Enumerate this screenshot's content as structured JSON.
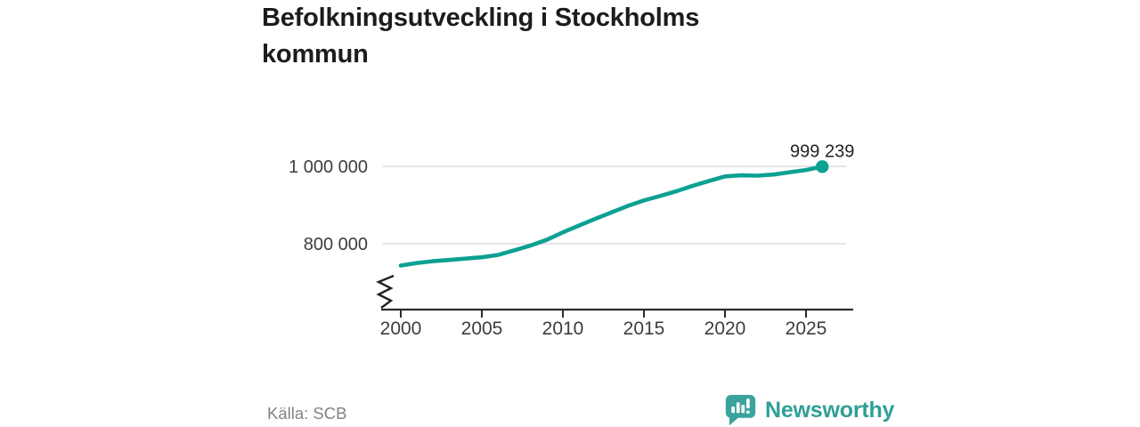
{
  "header": {
    "title": "Befolkningsutveckling i Stockholms kommun"
  },
  "chart_data": {
    "type": "line",
    "title": "Befolkningsutveckling i Stockholms kommun",
    "x": [
      2000,
      2001,
      2002,
      2003,
      2004,
      2005,
      2006,
      2007,
      2008,
      2009,
      2010,
      2011,
      2012,
      2013,
      2014,
      2015,
      2016,
      2017,
      2018,
      2019,
      2020,
      2021,
      2022,
      2023,
      2024,
      2025,
      2026
    ],
    "values": [
      743703,
      750348,
      754948,
      758148,
      761721,
      765044,
      771038,
      782885,
      795163,
      810120,
      829417,
      847073,
      864324,
      881235,
      897700,
      911989,
      923516,
      935619,
      949761,
      962154,
      974073,
      976700,
      975816,
      978927,
      984748,
      990500,
      999239
    ],
    "xticks": [
      2000,
      2005,
      2010,
      2015,
      2020,
      2025
    ],
    "yticks": [
      {
        "label": "1 000 000",
        "value": 1000000
      },
      {
        "label": "800 000",
        "value": 800000
      }
    ],
    "ylim_visible": [
      735000,
      1012000
    ],
    "xlim": [
      2000,
      2027
    ],
    "axis_break": true,
    "grid": "horizontal",
    "legend": "none",
    "end_label": {
      "text": "999 239",
      "value": 999239
    },
    "line_color": "#0ca192"
  },
  "footer": {
    "source": "Källa: SCB",
    "brand_name": "Newsworthy"
  },
  "colors": {
    "accent": "#0ca192",
    "gridline": "#dcdcdc",
    "axis": "#2b2b2b",
    "tick_label": "#3d3d3d",
    "title": "#1c1c1c",
    "source_text": "#828282",
    "logo": "#2f9f97",
    "logo_shield": "#3aa39b",
    "background": "#ffffff"
  }
}
